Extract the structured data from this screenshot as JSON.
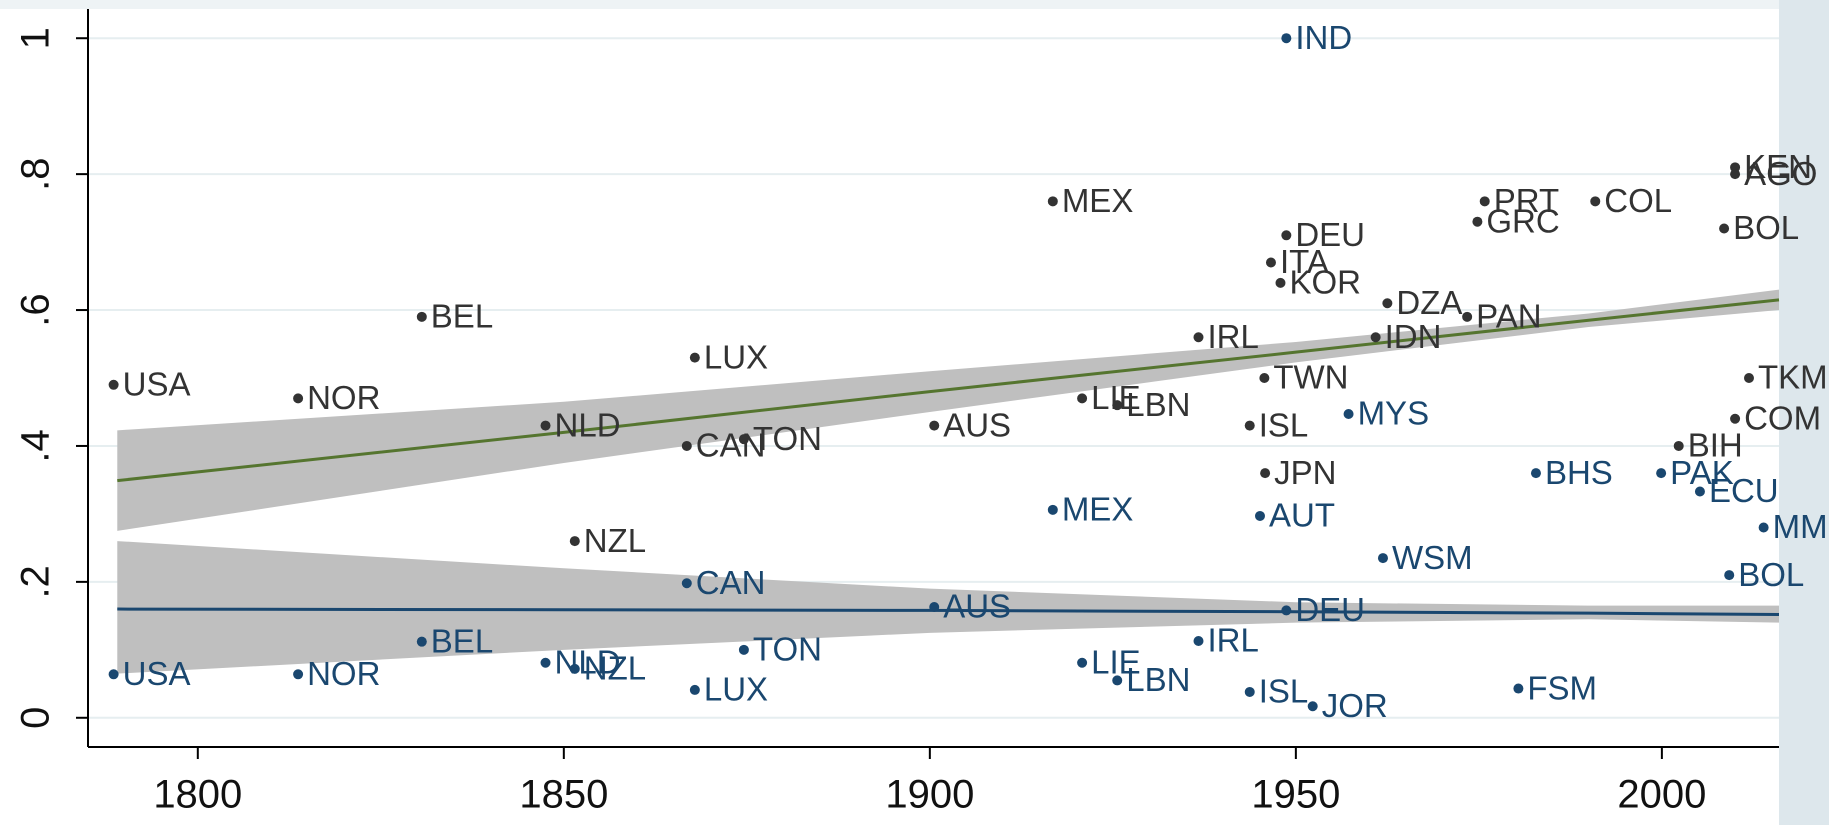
{
  "chart_data": {
    "type": "scatter",
    "xlim": [
      1785,
      2016
    ],
    "ylim": [
      -0.043,
      1.043
    ],
    "xticks": [
      1800,
      1850,
      1900,
      1950,
      2000
    ],
    "yticks": [
      0,
      {
        "value": 0.2,
        "label": ".2"
      },
      {
        "value": 0.4,
        "label": ".4"
      },
      {
        "value": 0.6,
        "label": ".6"
      },
      {
        "value": 0.8,
        "label": ".8"
      },
      1
    ],
    "grid": true,
    "series": [
      {
        "color": "#333333",
        "x": [
          1788.5,
          1813.7,
          1830.6,
          1847.5,
          1851.5,
          1867.9,
          1866.8,
          1874.6,
          1900.6,
          1916.8,
          1920.8,
          1925.6,
          1936.7,
          1943.7,
          1945.8,
          1948.7,
          1946.6,
          1947.9,
          1962.5,
          1945.7,
          1960.9,
          1975.8,
          1990.9,
          1974.8,
          2010.0,
          2010.0,
          1973.4,
          2011.9,
          2010.0,
          2002.3,
          2008.5
        ],
        "values": [
          0.49,
          0.47,
          0.59,
          0.43,
          0.26,
          0.53,
          0.4,
          0.41,
          0.43,
          0.76,
          0.47,
          0.46,
          0.56,
          0.43,
          0.36,
          0.71,
          0.67,
          0.64,
          0.61,
          0.5,
          0.56,
          0.76,
          0.76,
          0.73,
          0.81,
          0.8,
          0.59,
          0.5,
          0.44,
          0.4,
          0.72
        ],
        "point_labels": [
          "USA",
          "NOR",
          "BEL",
          "NLD",
          "NZL",
          "LUX",
          "CAN",
          "TON",
          "AUS",
          "MEX",
          "LIE",
          "LBN",
          "IRL",
          "ISL",
          "JPN",
          "DEU",
          "ITA",
          "KOR",
          "DZA",
          "TWN",
          "IDN",
          "PRT",
          "COL",
          "GRC",
          "KEN",
          "AGO",
          "PAN",
          "TKM",
          "COM",
          "BIH",
          "BOL"
        ],
        "fit": {
          "color": "#55752f",
          "band_color": "#bfbfbf",
          "x": [
            1789,
            1850,
            1900,
            1950,
            1990,
            2016
          ],
          "values": [
            0.349,
            0.42,
            0.48,
            0.538,
            0.585,
            0.615
          ],
          "lower": [
            0.275,
            0.375,
            0.45,
            0.523,
            0.575,
            0.6
          ],
          "upper": [
            0.423,
            0.465,
            0.51,
            0.553,
            0.595,
            0.63
          ]
        }
      },
      {
        "color": "#1a476f",
        "x": [
          1788.5,
          1813.7,
          1830.6,
          1847.5,
          1851.5,
          1867.9,
          1866.8,
          1874.6,
          1900.6,
          1916.8,
          1920.8,
          1925.6,
          1936.7,
          1943.7,
          1948.7,
          1945.1,
          1948.7,
          1952.3,
          1957.2,
          1961.9,
          1999.9,
          2005.2,
          1982.8,
          2009.2,
          2013.9,
          1980.4
        ],
        "values": [
          0.064,
          0.064,
          0.112,
          0.081,
          0.072,
          0.041,
          0.198,
          0.1,
          0.163,
          0.306,
          0.081,
          0.055,
          0.113,
          0.038,
          1.0,
          0.297,
          0.158,
          0.017,
          0.447,
          0.235,
          0.36,
          0.333,
          0.36,
          0.21,
          0.28,
          0.043
        ],
        "point_labels": [
          "USA",
          "NOR",
          "BEL",
          "NLD",
          "NZL",
          "LUX",
          "CAN",
          "TON",
          "AUS",
          "MEX",
          "LIE",
          "LBN",
          "IRL",
          "ISL",
          "IND",
          "AUT",
          "DEU",
          "JOR",
          "MYS",
          "WSM",
          "PAK",
          "ECU",
          "BHS",
          "BOL",
          "MMR",
          "FSM"
        ],
        "fit": {
          "color": "#1a476f",
          "band_color": "#bfbfbf",
          "x": [
            1789,
            1850,
            1900,
            1950,
            1990,
            2016
          ],
          "values": [
            0.16,
            0.159,
            0.158,
            0.156,
            0.154,
            0.152
          ],
          "lower": [
            0.065,
            0.1,
            0.125,
            0.14,
            0.145,
            0.14
          ],
          "upper": [
            0.26,
            0.22,
            0.19,
            0.17,
            0.165,
            0.165
          ]
        }
      }
    ]
  }
}
